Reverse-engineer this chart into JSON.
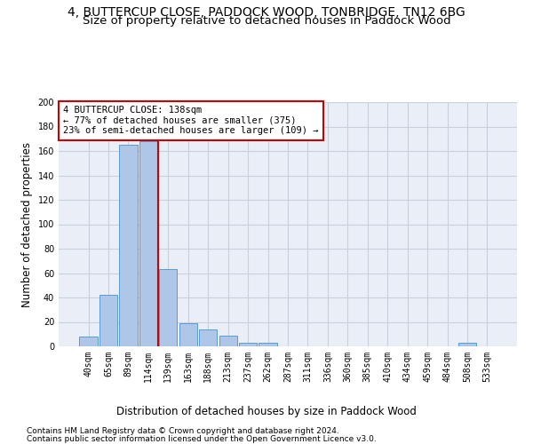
{
  "title": "4, BUTTERCUP CLOSE, PADDOCK WOOD, TONBRIDGE, TN12 6BG",
  "subtitle": "Size of property relative to detached houses in Paddock Wood",
  "xlabel": "Distribution of detached houses by size in Paddock Wood",
  "ylabel": "Number of detached properties",
  "footnote1": "Contains HM Land Registry data © Crown copyright and database right 2024.",
  "footnote2": "Contains public sector information licensed under the Open Government Licence v3.0.",
  "bar_labels": [
    "40sqm",
    "65sqm",
    "89sqm",
    "114sqm",
    "139sqm",
    "163sqm",
    "188sqm",
    "213sqm",
    "237sqm",
    "262sqm",
    "287sqm",
    "311sqm",
    "336sqm",
    "360sqm",
    "385sqm",
    "410sqm",
    "434sqm",
    "459sqm",
    "484sqm",
    "508sqm",
    "533sqm"
  ],
  "bar_values": [
    8,
    42,
    165,
    168,
    63,
    19,
    14,
    9,
    3,
    3,
    0,
    0,
    0,
    0,
    0,
    0,
    0,
    0,
    0,
    3,
    0
  ],
  "bar_color": "#aec6e8",
  "bar_edge_color": "#5b9bd5",
  "vline_index": 3.5,
  "vline_color": "#cc0000",
  "annotation_text": "4 BUTTERCUP CLOSE: 138sqm\n← 77% of detached houses are smaller (375)\n23% of semi-detached houses are larger (109) →",
  "annotation_box_color": "white",
  "annotation_box_edge": "#cc0000",
  "ylim": [
    0,
    200
  ],
  "yticks": [
    0,
    20,
    40,
    60,
    80,
    100,
    120,
    140,
    160,
    180,
    200
  ],
  "bg_color": "white",
  "grid_color": "#c8d0dc",
  "title_fontsize": 10,
  "subtitle_fontsize": 9.5,
  "label_fontsize": 8.5,
  "tick_fontsize": 7,
  "footnote_fontsize": 6.5,
  "annot_fontsize": 7.5
}
